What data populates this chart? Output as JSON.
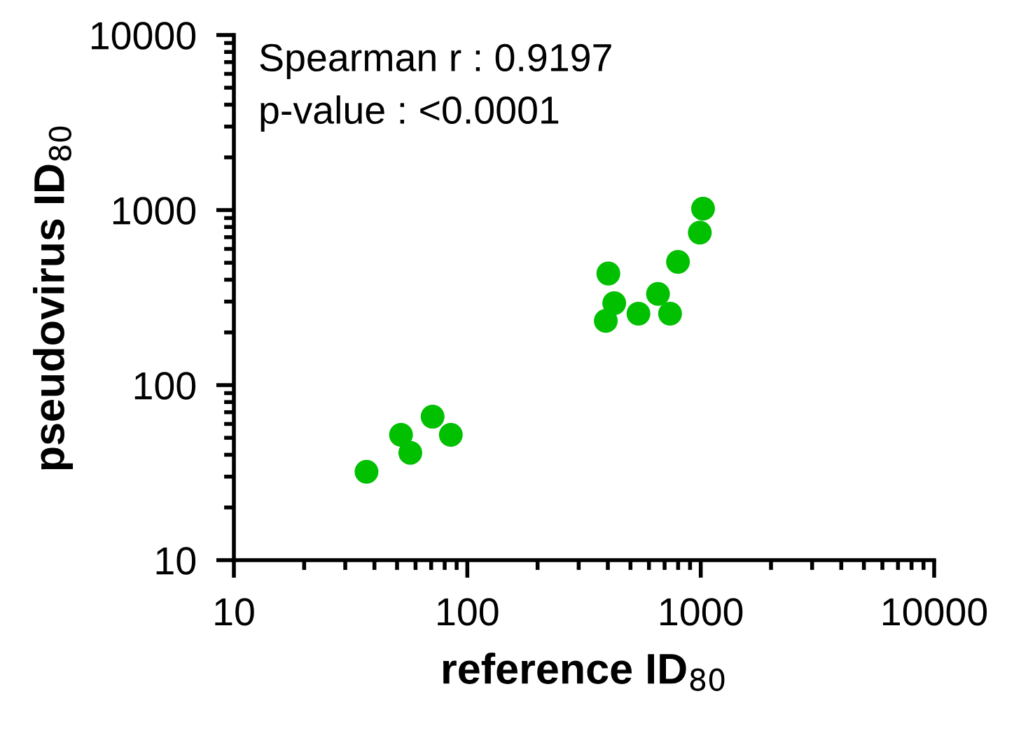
{
  "chart_data": {
    "type": "scatter",
    "xlabel": "reference ID$_{80}$",
    "ylabel": "pseudovirus ID$_{80}$",
    "annotations": [
      "Spearman r : 0.9197",
      "p-value : <0.0001"
    ],
    "x": [
      37,
      52,
      57,
      71,
      85,
      392,
      402,
      426,
      541,
      656,
      739,
      799,
      991,
      1023
    ],
    "series": [
      {
        "color": "#00c000",
        "values": [
          32,
          52,
          41,
          66,
          52,
          233,
          434,
          294,
          256,
          332,
          256,
          506,
          743,
          1019
        ]
      }
    ],
    "log": "xy",
    "xlim": [
      10,
      10000
    ],
    "ylim": [
      10,
      10000
    ],
    "xticks": [
      10,
      100,
      1000,
      10000
    ],
    "yticks": [
      10,
      100,
      1000,
      10000
    ],
    "grid": false,
    "marker": "circle"
  }
}
